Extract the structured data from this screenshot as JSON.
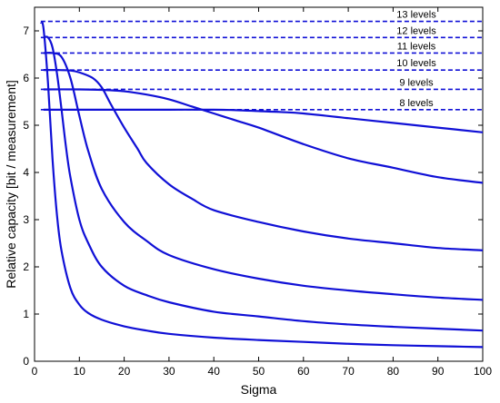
{
  "chart_data": {
    "type": "line",
    "title": "",
    "xlabel": "Sigma",
    "ylabel": "Relative capacity [bit / measurement]",
    "xlim": [
      0,
      100
    ],
    "ylim": [
      0,
      7.5
    ],
    "xticks": [
      0,
      10,
      20,
      30,
      40,
      50,
      60,
      70,
      80,
      90,
      100
    ],
    "yticks": [
      0,
      1,
      2,
      3,
      4,
      5,
      6,
      7
    ],
    "grid": false,
    "line_color": "#1010d6",
    "reference_lines": [
      {
        "label": "13 levels",
        "y": 7.2
      },
      {
        "label": "12 levels",
        "y": 6.86
      },
      {
        "label": "11 levels",
        "y": 6.53
      },
      {
        "label": "10 levels",
        "y": 6.17
      },
      {
        "label": "9 levels",
        "y": 5.76
      },
      {
        "label": "8 levels",
        "y": 5.33
      }
    ],
    "series": [
      {
        "x": [
          1.4,
          2,
          3,
          4,
          5,
          6,
          8,
          10,
          12,
          15,
          20,
          25,
          30,
          40,
          50,
          60,
          70,
          80,
          90,
          100
        ],
        "y": [
          7.18,
          7.05,
          5.9,
          4.3,
          3.1,
          2.35,
          1.55,
          1.2,
          1.02,
          0.88,
          0.74,
          0.65,
          0.58,
          0.5,
          0.45,
          0.41,
          0.37,
          0.34,
          0.32,
          0.3
        ]
      },
      {
        "x": [
          2,
          3,
          4,
          5,
          6,
          7,
          8,
          10,
          12,
          15,
          20,
          25,
          30,
          40,
          50,
          60,
          70,
          80,
          90,
          100
        ],
        "y": [
          6.86,
          6.86,
          6.65,
          6.1,
          5.35,
          4.55,
          3.9,
          3.0,
          2.5,
          2.0,
          1.6,
          1.4,
          1.25,
          1.05,
          0.95,
          0.85,
          0.78,
          0.73,
          0.69,
          0.65
        ]
      },
      {
        "x": [
          2,
          4,
          6,
          8,
          10,
          12,
          15,
          20,
          25,
          30,
          40,
          50,
          60,
          70,
          80,
          90,
          100
        ],
        "y": [
          6.53,
          6.53,
          6.45,
          6.0,
          5.2,
          4.45,
          3.65,
          2.95,
          2.55,
          2.25,
          1.95,
          1.75,
          1.6,
          1.5,
          1.42,
          1.35,
          1.3
        ]
      },
      {
        "x": [
          2,
          5,
          8,
          10,
          13,
          15,
          17,
          20,
          23,
          25,
          30,
          35,
          40,
          50,
          60,
          70,
          80,
          90,
          100
        ],
        "y": [
          6.17,
          6.17,
          6.16,
          6.12,
          6.0,
          5.8,
          5.45,
          4.95,
          4.5,
          4.2,
          3.75,
          3.45,
          3.2,
          2.95,
          2.75,
          2.6,
          2.5,
          2.4,
          2.35
        ]
      },
      {
        "x": [
          2,
          10,
          15,
          20,
          25,
          30,
          35,
          40,
          45,
          50,
          60,
          70,
          80,
          90,
          100
        ],
        "y": [
          5.76,
          5.76,
          5.75,
          5.72,
          5.65,
          5.55,
          5.4,
          5.25,
          5.1,
          4.95,
          4.6,
          4.3,
          4.1,
          3.9,
          3.78
        ]
      },
      {
        "x": [
          2,
          10,
          20,
          30,
          40,
          45,
          50,
          55,
          60,
          70,
          80,
          90,
          100
        ],
        "y": [
          5.33,
          5.33,
          5.33,
          5.33,
          5.33,
          5.32,
          5.3,
          5.28,
          5.25,
          5.15,
          5.05,
          4.95,
          4.85
        ]
      }
    ]
  }
}
